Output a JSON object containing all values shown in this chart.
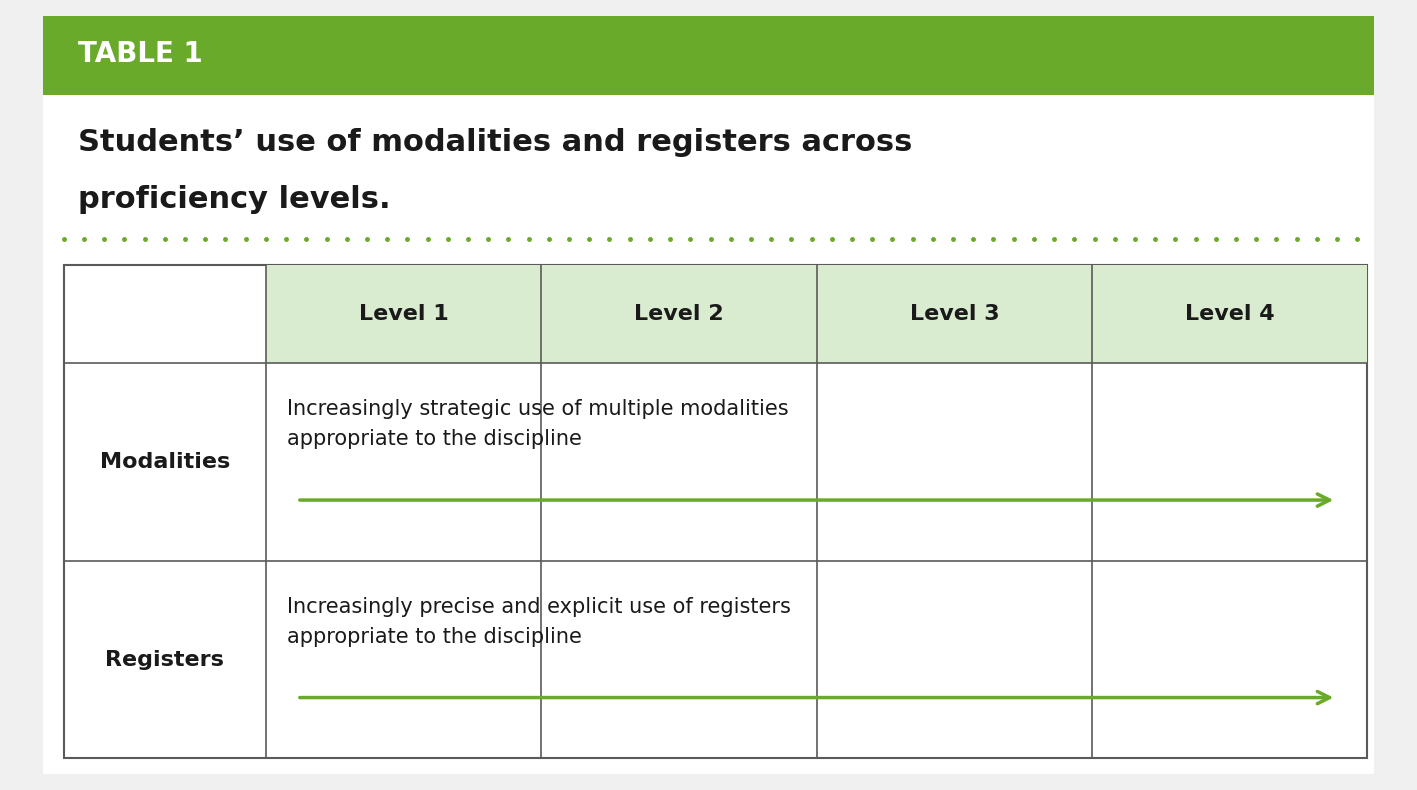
{
  "table_label": "TABLE 1",
  "title_line1": "Students’ use of modalities and registers across",
  "title_line2": "proficiency levels.",
  "header_bg": "#6aaa2a",
  "table_header_bg": "#daecd0",
  "table_border": "#5a5a5a",
  "header_text_color": "#ffffff",
  "title_color": "#1a1a1a",
  "col_headers": [
    "Level 1",
    "Level 2",
    "Level 3",
    "Level 4"
  ],
  "row_labels": [
    "Modalities",
    "Registers"
  ],
  "row_texts": [
    "Increasingly strategic use of multiple modalities\nappropriate to the discipline",
    "Increasingly precise and explicit use of registers\nappropriate to the discipline"
  ],
  "arrow_color": "#6aaa2a",
  "dotted_line_color": "#6aaa2a",
  "fig_bg": "#f0f0f0"
}
